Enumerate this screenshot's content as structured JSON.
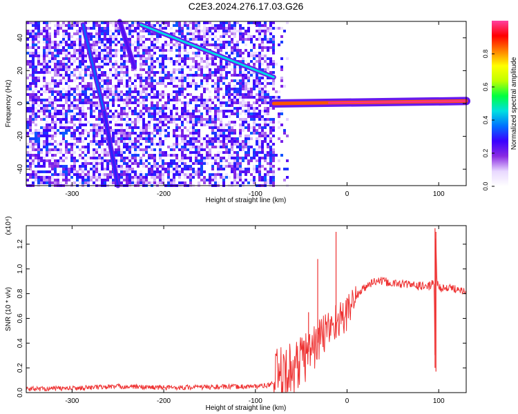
{
  "title": "C2E3.2024.276.17.03.G26",
  "chart_data": [
    {
      "type": "heatmap",
      "xlabel": "Height of straight line (km)",
      "ylabel": "Frequency (Hz)",
      "xlim": [
        -350,
        130
      ],
      "ylim": [
        -50,
        50
      ],
      "x_ticks": [
        -300,
        -200,
        -100,
        0,
        100
      ],
      "y_ticks": [
        -40,
        -20,
        0,
        20,
        40
      ],
      "colorbar": {
        "label": "Normalized spectral amplitude",
        "range": [
          0,
          1
        ],
        "ticks": [
          "0.0",
          "0.2",
          "0.4",
          "0.6",
          "0.8"
        ],
        "colors": [
          "#ffffff",
          "#e8d8ff",
          "#8a2be2",
          "#3a00ff",
          "#0070ff",
          "#00e0e0",
          "#00ff40",
          "#c0ff00",
          "#ffff00",
          "#ff8000",
          "#ff0000",
          "#ff40a0"
        ]
      },
      "tracks": [
        {
          "from": [
            -288,
            48
          ],
          "to": [
            -265,
            -5
          ],
          "amplitude": 0.35
        },
        {
          "from": [
            -265,
            -5
          ],
          "to": [
            -250,
            -50
          ],
          "amplitude": 0.3
        },
        {
          "from": [
            -248,
            50
          ],
          "to": [
            -232,
            22
          ],
          "amplitude": 0.25
        },
        {
          "from": [
            -225,
            48
          ],
          "to": [
            -80,
            16
          ],
          "amplitude": 0.45
        },
        {
          "from": [
            -80,
            0
          ],
          "to": [
            130,
            1.5
          ],
          "amplitude": 0.85
        }
      ]
    },
    {
      "type": "line",
      "xlabel": "Height of straight line (km)",
      "ylabel": "SNR (10 * v/v)",
      "exponent_label": "(x10⁴)",
      "xlim": [
        -350,
        130
      ],
      "ylim": [
        0,
        1.35
      ],
      "x_ticks": [
        -300,
        -200,
        -100,
        0,
        100
      ],
      "y_ticks": [
        "0.0",
        "0.2",
        "0.4",
        "0.6",
        "0.8",
        "1.0",
        "1.2"
      ],
      "series": [
        {
          "color": "#ee3030",
          "x": [
            -350,
            -300,
            -250,
            -200,
            -150,
            -100,
            -85,
            -75,
            -65,
            -55,
            -45,
            -40,
            -35,
            -30,
            -25,
            -20,
            -15,
            -10,
            -5,
            0,
            5,
            10,
            15,
            20,
            25,
            30,
            40,
            50,
            60,
            70,
            80,
            90,
            95,
            96,
            97,
            98,
            100,
            110,
            120,
            130
          ],
          "y": [
            0.03,
            0.035,
            0.05,
            0.04,
            0.045,
            0.05,
            0.06,
            0.1,
            0.15,
            0.22,
            0.3,
            0.35,
            0.38,
            0.42,
            0.48,
            0.52,
            0.55,
            0.6,
            0.58,
            0.65,
            0.72,
            0.78,
            0.82,
            0.85,
            0.88,
            0.9,
            0.9,
            0.88,
            0.88,
            0.87,
            0.86,
            0.86,
            0.9,
            0.2,
            1.3,
            0.9,
            0.85,
            0.84,
            0.84,
            0.83
          ]
        }
      ],
      "spikes": [
        {
          "x": -32,
          "y": 1.08
        },
        {
          "x": -12,
          "y": 1.3
        },
        {
          "x": -42,
          "y": 0.65
        },
        {
          "x": 96,
          "y": 1.33
        },
        {
          "x": 97,
          "y": 0.17
        }
      ]
    }
  ]
}
